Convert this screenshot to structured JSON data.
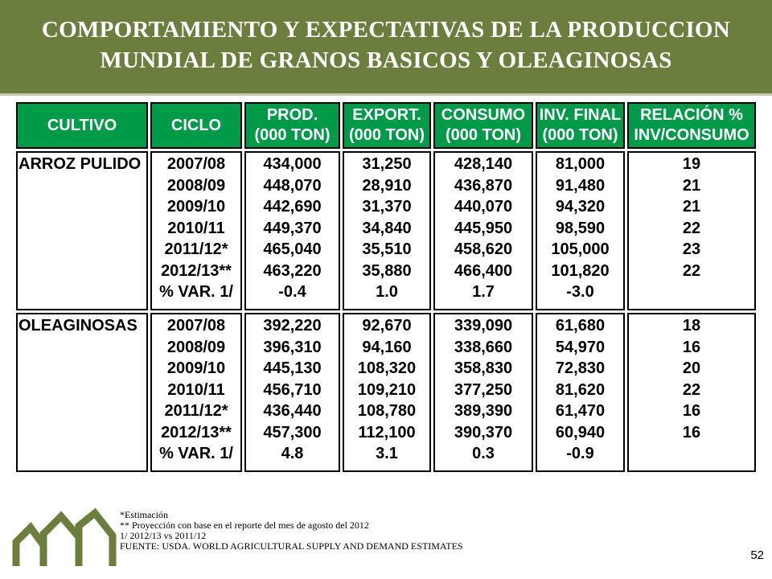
{
  "title": {
    "line1": "COMPORTAMIENTO Y EXPECTATIVAS DE LA PRODUCCION",
    "line2": "MUNDIAL DE GRANOS BASICOS Y OLEAGINOSAS"
  },
  "colors": {
    "banner": "#6b7e3d",
    "header_green": "#009a49",
    "logo_green": "#6b7e3d"
  },
  "table": {
    "headers": [
      {
        "line1": "CULTIVO",
        "line2": ""
      },
      {
        "line1": "CICLO",
        "line2": ""
      },
      {
        "line1": "PROD.",
        "line2": "(000 TON)"
      },
      {
        "line1": "EXPORT.",
        "line2": "(000 TON)"
      },
      {
        "line1": "CONSUMO",
        "line2": "(000 TON)"
      },
      {
        "line1": "INV. FINAL",
        "line2": "(000 TON)"
      },
      {
        "line1": "RELACIÓN %",
        "line2": "INV/CONSUMO"
      }
    ],
    "groups": [
      {
        "crop": "ARROZ PULIDO",
        "rows": [
          {
            "ciclo": "2007/08",
            "prod": "434,000",
            "export": "31,250",
            "consumo": "428,140",
            "inv": "81,000",
            "rel": "19"
          },
          {
            "ciclo": "2008/09",
            "prod": "448,070",
            "export": "28,910",
            "consumo": "436,870",
            "inv": "91,480",
            "rel": "21"
          },
          {
            "ciclo": "2009/10",
            "prod": "442,690",
            "export": "31,370",
            "consumo": "440,070",
            "inv": "94,320",
            "rel": "21"
          },
          {
            "ciclo": "2010/11",
            "prod": "449,370",
            "export": "34,840",
            "consumo": "445,950",
            "inv": "98,590",
            "rel": "22"
          },
          {
            "ciclo": "2011/12*",
            "prod": "465,040",
            "export": "35,510",
            "consumo": "458,620",
            "inv": "105,000",
            "rel": "23"
          },
          {
            "ciclo": "2012/13**",
            "prod": "463,220",
            "export": "35,880",
            "consumo": "466,400",
            "inv": "101,820",
            "rel": "22"
          },
          {
            "ciclo": "% VAR. 1/",
            "prod": "-0.4",
            "export": "1.0",
            "consumo": "1.7",
            "inv": "-3.0",
            "rel": ""
          }
        ]
      },
      {
        "crop": "OLEAGINOSAS",
        "rows": [
          {
            "ciclo": "2007/08",
            "prod": "392,220",
            "export": "92,670",
            "consumo": "339,090",
            "inv": "61,680",
            "rel": "18"
          },
          {
            "ciclo": "2008/09",
            "prod": "396,310",
            "export": "94,160",
            "consumo": "338,660",
            "inv": "54,970",
            "rel": "16"
          },
          {
            "ciclo": "2009/10",
            "prod": "445,130",
            "export": "108,320",
            "consumo": "358,830",
            "inv": "72,830",
            "rel": "20"
          },
          {
            "ciclo": "2010/11",
            "prod": "456,710",
            "export": "109,210",
            "consumo": "377,250",
            "inv": "81,620",
            "rel": "22"
          },
          {
            "ciclo": "2011/12*",
            "prod": "436,440",
            "export": "108,780",
            "consumo": "389,390",
            "inv": "61,470",
            "rel": "16"
          },
          {
            "ciclo": "2012/13**",
            "prod": "457,300",
            "export": "112,100",
            "consumo": "390,370",
            "inv": "60,940",
            "rel": "16"
          },
          {
            "ciclo": "% VAR. 1/",
            "prod": "4.8",
            "export": "3.1",
            "consumo": "0.3",
            "inv": "-0.9",
            "rel": ""
          }
        ]
      }
    ]
  },
  "footnotes": [
    "*Estimación",
    "** Proyección con base en el reporte  del mes de agosto del 2012",
    "1/ 2012/13 vs 2011/12",
    "FUENTE: USDA. WORLD AGRICULTURAL SUPPLY AND DEMAND ESTIMATES"
  ],
  "page_number": "52",
  "logo_icon": "mountains-logo-icon"
}
